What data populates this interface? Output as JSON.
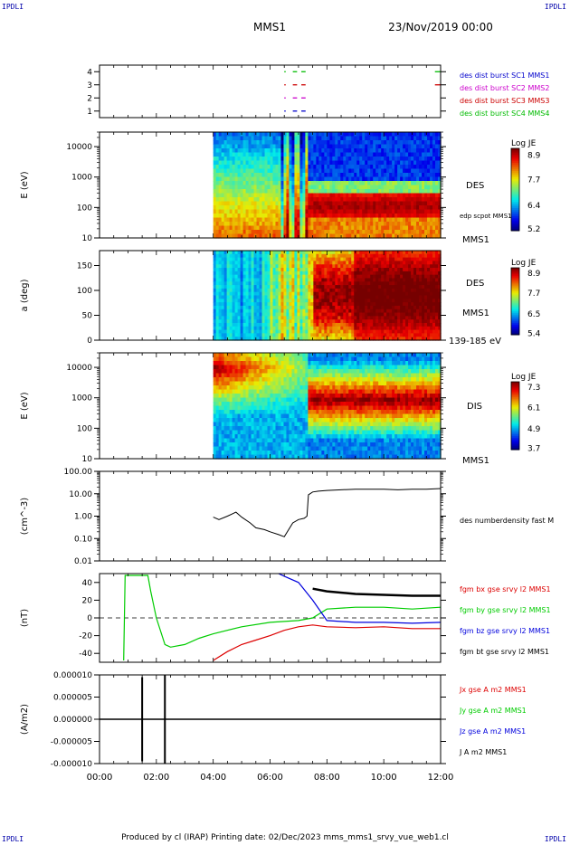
{
  "corner_tag": "IPDLI",
  "header": {
    "mission": "MMS1",
    "date": "23/Nov/2019 00:00"
  },
  "footer": "Produced by cl (IRAP)   Printing date: 02/Dec/2023   mms_mms1_srvy_vue_web1.cl",
  "colors": {
    "spectrogram_low": "#0000cc",
    "spectrogram_high": "#cc0000",
    "bx": "#dd0000",
    "by": "#00cc00",
    "bz": "#0000dd",
    "bt": "#000000"
  },
  "chart_data": [
    {
      "id": "burst",
      "type": "scatter",
      "yticks": [
        "1",
        "2",
        "3",
        "4"
      ],
      "legend": [
        {
          "label": "des dist burst SC1 MMS1",
          "color": "#0000cc"
        },
        {
          "label": "des dist burst SC2 MMS2",
          "color": "#cc00cc"
        },
        {
          "label": "des dist burst SC3 MMS3",
          "color": "#cc0000"
        },
        {
          "label": "des dist burst SC4 MMS4",
          "color": "#00bb00"
        }
      ],
      "segments": [
        {
          "sc": 4,
          "color": "#00bb00",
          "x": [
            [
              6.5,
              6.55
            ],
            [
              6.8,
              6.95
            ],
            [
              7.1,
              7.25
            ],
            [
              11.8,
              12.0
            ]
          ]
        },
        {
          "sc": 3,
          "color": "#cc0000",
          "x": [
            [
              6.5,
              6.55
            ],
            [
              6.8,
              6.95
            ],
            [
              7.1,
              7.25
            ],
            [
              11.8,
              12.0
            ]
          ]
        },
        {
          "sc": 2,
          "color": "#cc00cc",
          "x": [
            [
              6.5,
              6.55
            ],
            [
              6.8,
              6.95
            ],
            [
              7.1,
              7.25
            ]
          ]
        },
        {
          "sc": 1,
          "color": "#0000cc",
          "x": [
            [
              6.5,
              6.55
            ],
            [
              6.8,
              6.95
            ],
            [
              7.1,
              7.25
            ]
          ]
        }
      ]
    },
    {
      "id": "des_energy",
      "type": "heatmap",
      "ylabel": "E (eV)",
      "yticks": [
        "10",
        "100",
        "1000",
        "10000"
      ],
      "label": "DES",
      "sublabel": "edp scpot MMS1",
      "side_label": "MMS1",
      "colorbar": {
        "title": "Log JE",
        "ticks": [
          "8.9",
          "7.7",
          "6.4",
          "5.2"
        ]
      }
    },
    {
      "id": "des_pitch",
      "type": "heatmap",
      "ylabel": "a (deg)",
      "yticks": [
        "0",
        "50",
        "100",
        "150"
      ],
      "label": "DES",
      "side_label": "MMS1",
      "bottom_label": "139-185 eV",
      "colorbar": {
        "title": "Log JE",
        "ticks": [
          "8.9",
          "7.7",
          "6.5",
          "5.4"
        ]
      }
    },
    {
      "id": "dis_energy",
      "type": "heatmap",
      "ylabel": "E (eV)",
      "yticks": [
        "10",
        "100",
        "1000",
        "10000"
      ],
      "label": "DIS",
      "side_label": "MMS1",
      "colorbar": {
        "title": "Log JE",
        "ticks": [
          "7.3",
          "6.1",
          "4.9",
          "3.7"
        ]
      }
    },
    {
      "id": "density",
      "type": "line",
      "ylabel": "(cm^-3)",
      "yticks": [
        "0.01",
        "0.10",
        "1.00",
        "10.00",
        "100.00"
      ],
      "legend": [
        {
          "label": "des numberdensity fast M",
          "color": "#000000"
        }
      ],
      "x": [
        4.0,
        4.2,
        4.5,
        4.8,
        5.0,
        5.3,
        5.5,
        5.8,
        6.0,
        6.3,
        6.5,
        6.8,
        7.0,
        7.2,
        7.3,
        7.35,
        7.5,
        7.7,
        8.0,
        8.5,
        9.0,
        9.5,
        10.0,
        10.5,
        11.0,
        11.5,
        12.0
      ],
      "values": [
        0.9,
        0.7,
        1.0,
        1.5,
        0.9,
        0.5,
        0.3,
        0.25,
        0.2,
        0.15,
        0.12,
        0.5,
        0.7,
        0.8,
        1.0,
        9,
        12,
        13,
        14,
        15,
        16,
        16,
        16,
        15,
        16,
        16,
        17
      ]
    },
    {
      "id": "bfield",
      "type": "line",
      "ylabel": "(nT)",
      "yticks": [
        "-40",
        "-20",
        "0",
        "20",
        "40"
      ],
      "ylim": [
        -50,
        50
      ],
      "legend": [
        {
          "label": "fgm bx gse srvy l2 MMS1",
          "color": "#dd0000"
        },
        {
          "label": "fgm by gse srvy l2 MMS1",
          "color": "#00cc00"
        },
        {
          "label": "fgm bz gse srvy l2 MMS1",
          "color": "#0000dd"
        },
        {
          "label": "fgm bt gse srvy l2 MMS1",
          "color": "#000000"
        }
      ],
      "series": [
        {
          "name": "bx",
          "x": [
            4.0,
            4.5,
            5.0,
            5.5,
            6.0,
            6.5,
            7.0,
            7.5,
            8.0,
            9.0,
            10.0,
            11.0,
            12.0
          ],
          "values": [
            -48,
            -38,
            -30,
            -25,
            -20,
            -14,
            -10,
            -8,
            -10,
            -11,
            -10,
            -12,
            -12
          ]
        },
        {
          "name": "by",
          "x": [
            0.85,
            0.9,
            1.7,
            1.8,
            2.0,
            2.3,
            2.5,
            3.0,
            3.5,
            4.0,
            5.0,
            6.0,
            7.0,
            7.5,
            8.0,
            9.0,
            10.0,
            11.0,
            12.0
          ],
          "values": [
            -48,
            48,
            48,
            30,
            0,
            -30,
            -33,
            -30,
            -23,
            -18,
            -10,
            -5,
            -3,
            0,
            10,
            12,
            12,
            10,
            12
          ]
        },
        {
          "name": "bz",
          "x": [
            6.3,
            6.5,
            7.0,
            7.5,
            8.0,
            9.0,
            10.0,
            11.0,
            12.0
          ],
          "values": [
            50,
            47,
            40,
            20,
            -3,
            -5,
            -5,
            -6,
            -5
          ]
        },
        {
          "name": "bt",
          "x": [
            7.5,
            8.0,
            9.0,
            10.0,
            11.0,
            12.0
          ],
          "values": [
            33,
            30,
            27,
            26,
            25,
            25
          ]
        }
      ]
    },
    {
      "id": "current",
      "type": "line",
      "ylabel": "(A/m2)",
      "yticks": [
        "-0.000010",
        "-0.000005",
        "0.000000",
        "0.000005",
        "0.000010"
      ],
      "xticks": [
        "00:00",
        "02:00",
        "04:00",
        "06:00",
        "08:00",
        "10:00",
        "12:00"
      ],
      "ylim": [
        -1e-05,
        1e-05
      ],
      "legend": [
        {
          "label": "Jx gse A m2 MMS1",
          "color": "#dd0000"
        },
        {
          "label": "Jy gse A m2 MMS1",
          "color": "#00cc00"
        },
        {
          "label": "Jz gse A m2 MMS1",
          "color": "#0000dd"
        },
        {
          "label": "J A m2 MMS1",
          "color": "#000000"
        }
      ]
    }
  ]
}
